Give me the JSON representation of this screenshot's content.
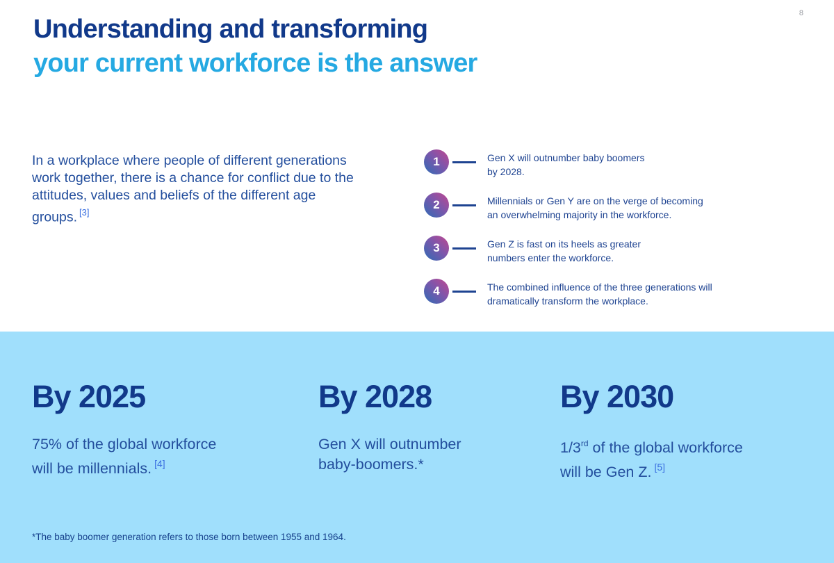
{
  "page": {
    "number": "8"
  },
  "title": {
    "line1": "Understanding and transforming",
    "line2": "your current workforce is the answer"
  },
  "intro": {
    "text": "In a workplace where people of different generations work together, there is a chance for conflict due to the attitudes, values and beliefs of the different age groups.",
    "citation": "[3]"
  },
  "list": {
    "items": [
      {
        "number": "1",
        "lines": [
          "Gen X will outnumber baby boomers",
          "by 2028."
        ]
      },
      {
        "number": "2",
        "lines": [
          "Millennials or Gen Y are on the verge of becoming",
          "an overwhelming majority in the workforce."
        ]
      },
      {
        "number": "3",
        "lines": [
          "Gen Z is fast on its heels as greater",
          "numbers enter the workforce."
        ]
      },
      {
        "number": "4",
        "lines": [
          "The combined influence of the three generations will",
          "dramatically transform the workplace."
        ]
      }
    ]
  },
  "milestones": {
    "items": [
      {
        "heading": "By 2025",
        "line1": "75% of the global workforce",
        "line2": "will be millennials.",
        "citation": "[4]"
      },
      {
        "heading": "By 2028",
        "line1": "Gen X will outnumber",
        "line2": "baby-boomers.*",
        "citation": ""
      },
      {
        "heading": "By 2030",
        "line1_prefix": "1/3",
        "line1_sup": "rd",
        "line1_rest": " of the global workforce",
        "line2": "will be Gen Z.",
        "citation": "[5]"
      }
    ],
    "footnote": "*The baby boomer generation refers to those born between 1955 and 1964."
  },
  "colors": {
    "navy": "#11398a",
    "sky": "#25a9e2",
    "body_blue": "#234e9d",
    "cite_blue": "#3a6fe0",
    "band_bg": "#a0dffc",
    "badge_pink": "#c2478f",
    "badge_blue": "#2d6cb5"
  }
}
